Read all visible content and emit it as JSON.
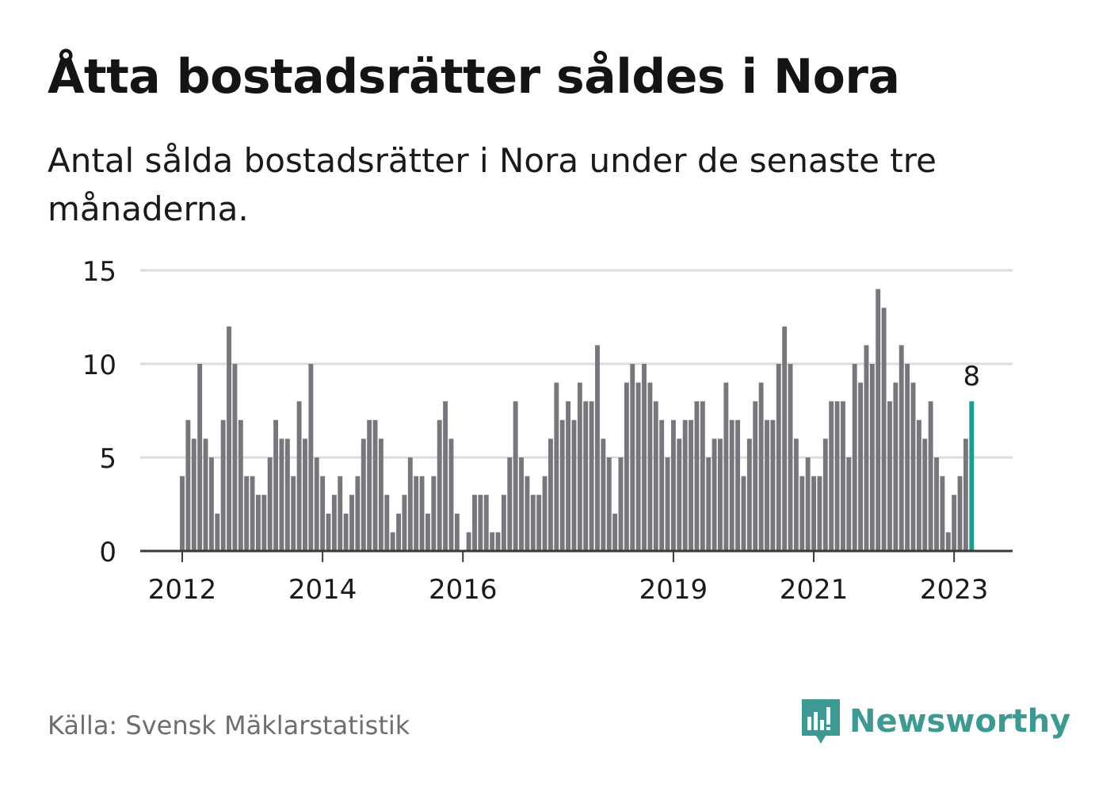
{
  "title": "Åtta bostadsrätter såldes i Nora",
  "subtitle": "Antal sålda bostadsrätter i Nora under de senaste tre månaderna.",
  "source": "Källa: Svensk Mäklarstatistik",
  "brand": {
    "name": "Newsworthy",
    "icon": "newsworthy-logo-icon"
  },
  "colors": {
    "bar": "#77767c",
    "highlight": "#1a9e8f",
    "grid": "#dcdcdc",
    "axis": "#3a3a3a",
    "brand": "#3d9a92"
  },
  "chart_data": {
    "type": "bar",
    "title": "Åtta bostadsrätter såldes i Nora",
    "ylim": [
      0,
      15
    ],
    "y_ticks": [
      "0",
      "5",
      "10",
      "15"
    ],
    "x_ticks": [
      {
        "label": "2012",
        "month": 0
      },
      {
        "label": "2014",
        "month": 24
      },
      {
        "label": "2016",
        "month": 48
      },
      {
        "label": "2019",
        "month": 84
      },
      {
        "label": "2021",
        "month": 108
      },
      {
        "label": "2023",
        "month": 132
      }
    ],
    "start": "2012-01",
    "interval": "month",
    "grid": true,
    "highlight_label": "8",
    "values": [
      4,
      7,
      6,
      10,
      6,
      5,
      2,
      7,
      12,
      10,
      7,
      4,
      4,
      3,
      3,
      5,
      7,
      6,
      6,
      4,
      8,
      6,
      10,
      5,
      4,
      2,
      3,
      4,
      2,
      3,
      4,
      6,
      7,
      7,
      6,
      3,
      1,
      2,
      3,
      5,
      4,
      4,
      2,
      4,
      7,
      8,
      6,
      2,
      0,
      1,
      3,
      3,
      3,
      1,
      1,
      3,
      5,
      8,
      5,
      4,
      3,
      3,
      4,
      6,
      9,
      7,
      8,
      7,
      9,
      8,
      8,
      11,
      6,
      5,
      2,
      5,
      9,
      10,
      9,
      10,
      9,
      8,
      7,
      5,
      7,
      6,
      7,
      7,
      8,
      8,
      5,
      6,
      6,
      9,
      7,
      7,
      4,
      6,
      8,
      9,
      7,
      7,
      10,
      12,
      10,
      6,
      4,
      5,
      4,
      4,
      6,
      8,
      8,
      8,
      5,
      10,
      9,
      11,
      10,
      14,
      13,
      8,
      9,
      11,
      10,
      9,
      7,
      6,
      8,
      5,
      4,
      1,
      3,
      4,
      6,
      8
    ]
  }
}
